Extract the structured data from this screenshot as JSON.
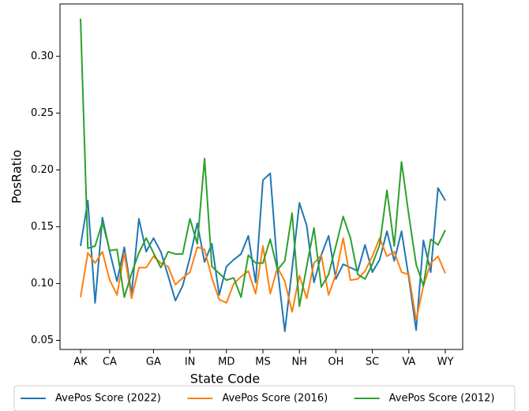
{
  "chart_data": {
    "type": "line",
    "x_label": "State Code",
    "y_label": "PosRatio",
    "categories": [
      "AK",
      null,
      null,
      null,
      "CA",
      null,
      null,
      null,
      null,
      null,
      "GA",
      null,
      null,
      null,
      null,
      "IN",
      null,
      null,
      null,
      null,
      "MD",
      null,
      null,
      null,
      null,
      "MS",
      null,
      null,
      null,
      null,
      "NH",
      null,
      null,
      null,
      null,
      "OH",
      null,
      null,
      null,
      null,
      "SC",
      null,
      null,
      null,
      null,
      "VA",
      null,
      null,
      null,
      null,
      "WY"
    ],
    "series": [
      {
        "name": "AvePos Score (2022)",
        "color": "#1f77b4",
        "values": [
          0.133,
          0.173,
          0.083,
          0.158,
          0.128,
          0.102,
          0.132,
          0.091,
          0.157,
          0.128,
          0.14,
          0.128,
          0.107,
          0.085,
          0.098,
          0.123,
          0.153,
          0.119,
          0.135,
          0.09,
          0.115,
          0.121,
          0.126,
          0.142,
          0.101,
          0.191,
          0.197,
          0.113,
          0.058,
          0.113,
          0.171,
          0.151,
          0.101,
          0.125,
          0.142,
          0.104,
          0.117,
          0.114,
          0.111,
          0.134,
          0.11,
          0.121,
          0.146,
          0.12,
          0.146,
          0.105,
          0.059,
          0.138,
          0.11,
          0.184,
          0.173
        ]
      },
      {
        "name": "AvePos Score (2016)",
        "color": "#ff7f0e",
        "values": [
          0.088,
          0.127,
          0.118,
          0.128,
          0.103,
          0.09,
          0.127,
          0.087,
          0.114,
          0.114,
          0.124,
          0.118,
          0.115,
          0.099,
          0.105,
          0.11,
          0.132,
          0.13,
          0.105,
          0.086,
          0.083,
          0.1,
          0.106,
          0.111,
          0.091,
          0.133,
          0.091,
          0.114,
          0.102,
          0.075,
          0.107,
          0.087,
          0.118,
          0.125,
          0.09,
          0.108,
          0.14,
          0.103,
          0.104,
          0.111,
          0.124,
          0.14,
          0.124,
          0.128,
          0.11,
          0.108,
          0.068,
          0.098,
          0.118,
          0.124,
          0.109
        ]
      },
      {
        "name": "AvePos Score (2012)",
        "color": "#2ca02c",
        "values": [
          0.333,
          0.131,
          0.133,
          0.154,
          0.129,
          0.13,
          0.088,
          0.109,
          0.127,
          0.14,
          0.127,
          0.114,
          0.128,
          0.126,
          0.126,
          0.157,
          0.135,
          0.21,
          0.115,
          0.109,
          0.103,
          0.105,
          0.088,
          0.125,
          0.118,
          0.118,
          0.139,
          0.112,
          0.12,
          0.162,
          0.08,
          0.115,
          0.149,
          0.097,
          0.108,
          0.133,
          0.159,
          0.14,
          0.108,
          0.104,
          0.117,
          0.134,
          0.182,
          0.133,
          0.207,
          0.16,
          0.117,
          0.098,
          0.139,
          0.134,
          0.147
        ]
      }
    ],
    "ylim": [
      0.042,
      0.346
    ],
    "yticks": [
      0.05,
      {
        "value": 0.1,
        "label": "0.10"
      },
      0.15,
      {
        "value": 0.2,
        "label": "0.20"
      },
      0.25,
      {
        "value": 0.3,
        "label": "0.30"
      }
    ],
    "legend": "bottom"
  }
}
